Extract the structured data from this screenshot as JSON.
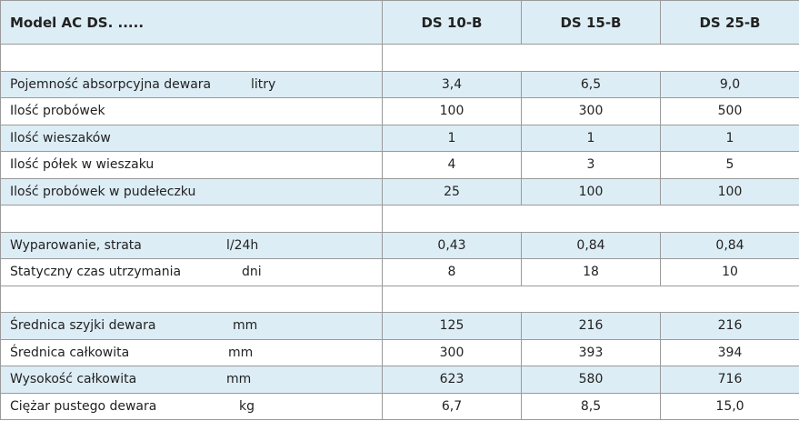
{
  "header": {
    "title": "Model  AC DS. .....",
    "columns": [
      "DS 10-B",
      "DS 15-B",
      "DS 25-B"
    ]
  },
  "rows": [
    {
      "label": "Pojemność absorpcyjna dewara",
      "unit": "litry",
      "values": [
        "3,4",
        "6,5",
        "9,0"
      ]
    },
    {
      "label": "Ilość probówek",
      "values": [
        "100",
        "300",
        "500"
      ]
    },
    {
      "label": "Ilość wieszaków",
      "values": [
        "1",
        "1",
        "1"
      ]
    },
    {
      "label": "Ilość półek w wieszaku",
      "values": [
        "4",
        "3",
        "5"
      ]
    },
    {
      "label": "Ilość probówek w pudełeczku",
      "values": [
        "25",
        "100",
        "100"
      ]
    },
    {
      "label": "Wyparowanie, strata",
      "unit": "l/24h",
      "values": [
        "0,43",
        "0,84",
        "0,84"
      ]
    },
    {
      "label": "Statyczny czas utrzymania",
      "unit": "dni",
      "values": [
        "8",
        "18",
        "10"
      ]
    },
    {
      "label": "Średnica szyjki dewara",
      "unit": "mm",
      "values": [
        "125",
        "216",
        "216"
      ]
    },
    {
      "label": "Średnica całkowita",
      "unit": "mm",
      "values": [
        "300",
        "393",
        "394"
      ]
    },
    {
      "label": "Wysokość całkowita",
      "unit": "mm",
      "values": [
        "623",
        "580",
        "716"
      ]
    },
    {
      "label": "Ciężar pustego dewara",
      "unit": "kg",
      "values": [
        "6,7",
        "8,5",
        "15,0"
      ]
    }
  ]
}
